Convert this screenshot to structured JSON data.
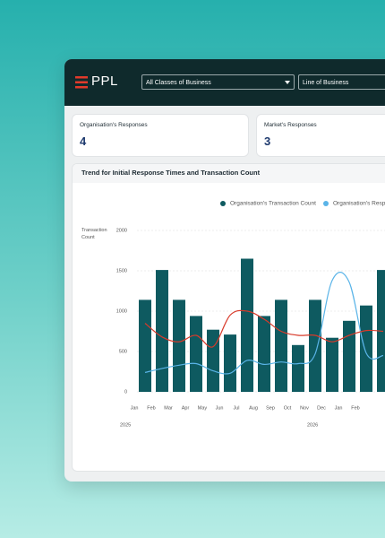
{
  "header": {
    "logo": "PPL",
    "filters": [
      "All Classes of Business",
      "Line of Business"
    ]
  },
  "cards": [
    {
      "label": "Organisation's Responses",
      "value": 4
    },
    {
      "label": "Market's Responses",
      "value": 3
    }
  ],
  "chart_data": {
    "type": "combo",
    "title": "Trend for Initial Response Times and Transaction Count",
    "y_label": "Transaction Count",
    "categories": [
      "Jan",
      "Feb",
      "Mar",
      "Apr",
      "May",
      "Jun",
      "Jul",
      "Aug",
      "Sep",
      "Oct",
      "Nov",
      "Dec",
      "Jan",
      "Feb",
      null
    ],
    "year_labels": [
      "2025",
      "2026"
    ],
    "series": [
      {
        "name": "Organisation's Transaction Count",
        "color": "#0e5a60",
        "type": "bar",
        "values": [
          1140,
          1510,
          1140,
          940,
          770,
          710,
          1650,
          940,
          1140,
          580,
          1140,
          670,
          880,
          1070,
          1510
        ]
      },
      {
        "name": "Organisation's Respo",
        "color": "#5ab4e8",
        "type": "line",
        "values": [
          240,
          290,
          330,
          350,
          260,
          230,
          390,
          340,
          370,
          350,
          470,
          1380,
          1360,
          480,
          450
        ]
      },
      {
        "color": "#d83a2a",
        "type": "line",
        "values": [
          850,
          680,
          620,
          700,
          560,
          950,
          1000,
          900,
          750,
          700,
          700,
          620,
          700,
          760,
          750
        ]
      }
    ],
    "ylim": [
      0,
      2000
    ],
    "yticks": [
      0,
      500,
      1000,
      1500,
      2000
    ],
    "grid": true
  }
}
